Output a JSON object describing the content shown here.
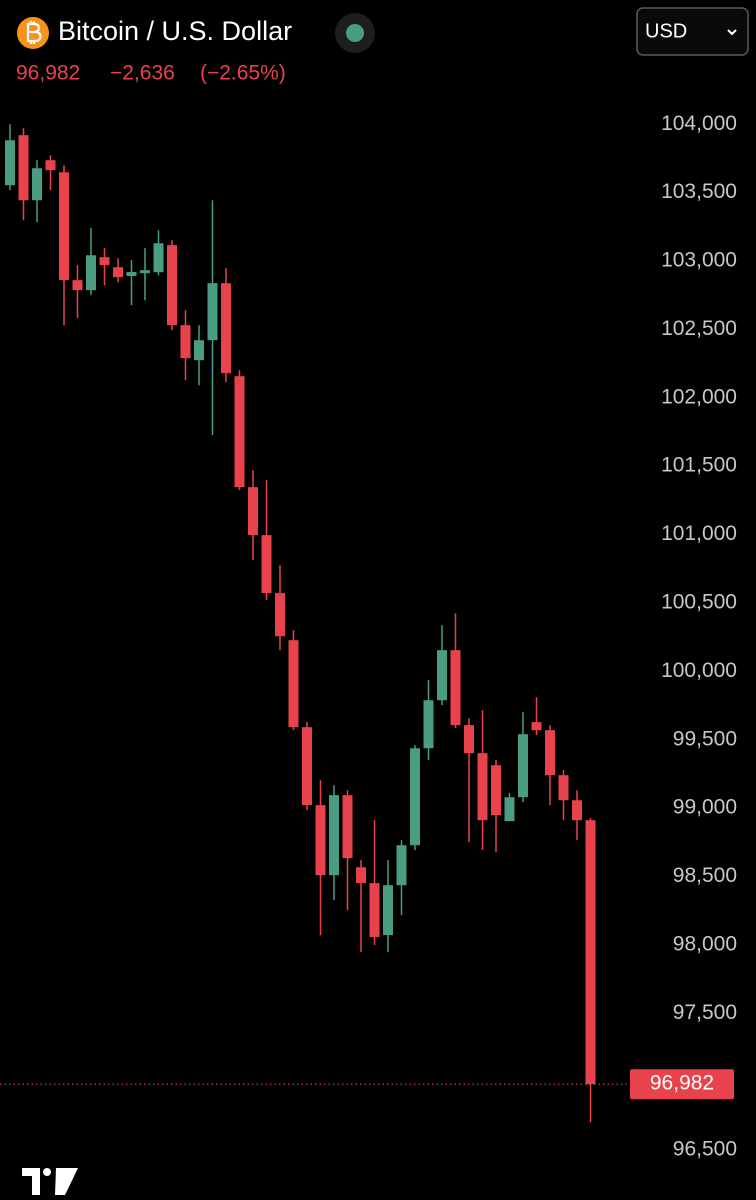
{
  "chart_data": {
    "type": "candlestick",
    "title": "Bitcoin / U.S. Dollar",
    "currency": "USD",
    "last_price": {
      "value": 96982,
      "label": "96,982"
    },
    "change": {
      "value": -2636,
      "label": "−2,636"
    },
    "change_pct": {
      "value": -2.65,
      "label": "(−2.65%)"
    },
    "up_color": "#4a9c83",
    "down_color": "#e8434d",
    "ylim": [
      96150,
      104550
    ],
    "yticks": [
      {
        "value": 104000,
        "label": "104,000"
      },
      {
        "value": 103500,
        "label": "103,500"
      },
      {
        "value": 103000,
        "label": "103,000"
      },
      {
        "value": 102500,
        "label": "102,500"
      },
      {
        "value": 102000,
        "label": "102,000"
      },
      {
        "value": 101500,
        "label": "101,500"
      },
      {
        "value": 101000,
        "label": "101,000"
      },
      {
        "value": 100500,
        "label": "100,500"
      },
      {
        "value": 100000,
        "label": "100,000"
      },
      {
        "value": 99500,
        "label": "99,500"
      },
      {
        "value": 99000,
        "label": "99,000"
      },
      {
        "value": 98500,
        "label": "98,500"
      },
      {
        "value": 98000,
        "label": "98,000"
      },
      {
        "value": 97500,
        "label": "97,500"
      },
      {
        "value": 96500,
        "label": "96,500"
      }
    ],
    "open": [
      103554,
      103920,
      103444,
      103737,
      103649,
      102860,
      102787,
      103028,
      102955,
      102890,
      102911,
      102918,
      103116,
      102531,
      102275,
      102421,
      102838,
      102158,
      101347,
      100996,
      100572,
      100228,
      99592,
      99022,
      98510,
      99095,
      98568,
      98452,
      98072,
      98437,
      98729,
      99438,
      99789,
      100155,
      99607,
      99402,
      99314,
      98905,
      99080,
      99629,
      99570,
      99241,
      99058,
      98912
    ],
    "high": [
      104000,
      103971,
      103737,
      103773,
      103700,
      102970,
      103240,
      103094,
      103020,
      103006,
      103094,
      103225,
      103152,
      102640,
      102531,
      103444,
      102948,
      102202,
      101471,
      101398,
      100776,
      100301,
      99629,
      99204,
      99168,
      99131,
      98620,
      98912,
      98620,
      98766,
      99460,
      99936,
      100338,
      100425,
      99658,
      99716,
      99351,
      99110,
      99702,
      99811,
      99607,
      99278,
      99131,
      98927
    ],
    "low": [
      103518,
      103298,
      103284,
      103518,
      102531,
      102582,
      102750,
      102823,
      102845,
      102677,
      102713,
      102896,
      102494,
      102129,
      102092,
      101727,
      102114,
      101325,
      100813,
      100520,
      100155,
      99570,
      98985,
      98071,
      98327,
      98254,
      97947,
      97999,
      97947,
      98218,
      98693,
      99351,
      99753,
      99585,
      98751,
      98693,
      98678,
      98985,
      99044,
      99534,
      99022,
      98912,
      98766,
      96704
    ],
    "close": [
      103883,
      103444,
      103678,
      103664,
      102860,
      102787,
      103042,
      102970,
      102882,
      102920,
      102933,
      103130,
      102531,
      102290,
      102421,
      102838,
      102180,
      101347,
      100996,
      100572,
      100257,
      99592,
      99022,
      98510,
      99095,
      98634,
      98452,
      98057,
      98437,
      98729,
      99438,
      99789,
      100155,
      99607,
      99402,
      98912,
      98949,
      99080,
      99541,
      99570,
      99241,
      99058,
      98912,
      96982
    ]
  }
}
